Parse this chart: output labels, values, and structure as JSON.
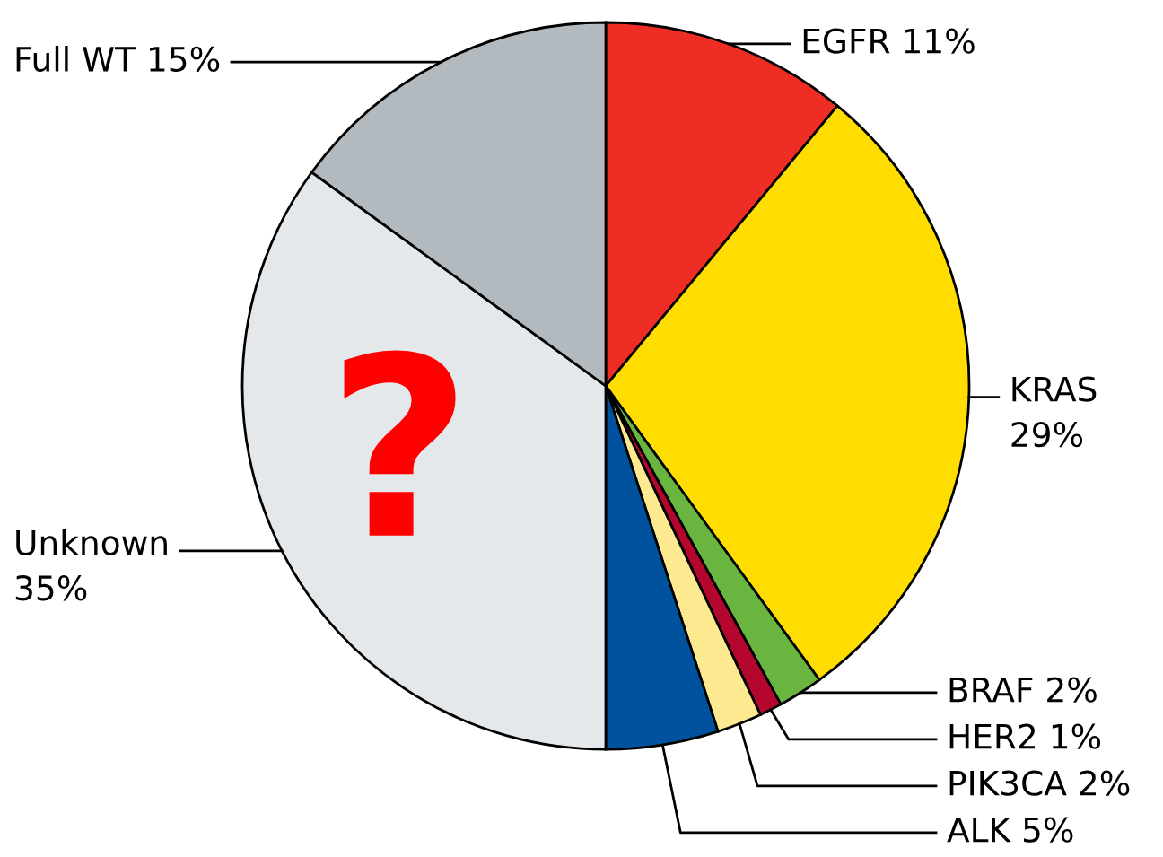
{
  "chart_data": {
    "type": "pie",
    "categories": [
      "EGFR",
      "KRAS",
      "BRAF",
      "HER2",
      "PIK3CA",
      "ALK",
      "Unknown",
      "Full WT"
    ],
    "values": [
      11,
      29,
      2,
      1,
      2,
      5,
      35,
      15
    ],
    "value_labels": [
      "11%",
      "29%",
      "2%",
      "1%",
      "2%",
      "5%",
      "35%",
      "15%"
    ],
    "colors": [
      "#ee2e24",
      "#ffdd00",
      "#6ab440",
      "#b5062e",
      "#fde98f",
      "#00519e",
      "#e4e8eb",
      "#b2b9bf"
    ],
    "annotations": [
      "?"
    ]
  }
}
